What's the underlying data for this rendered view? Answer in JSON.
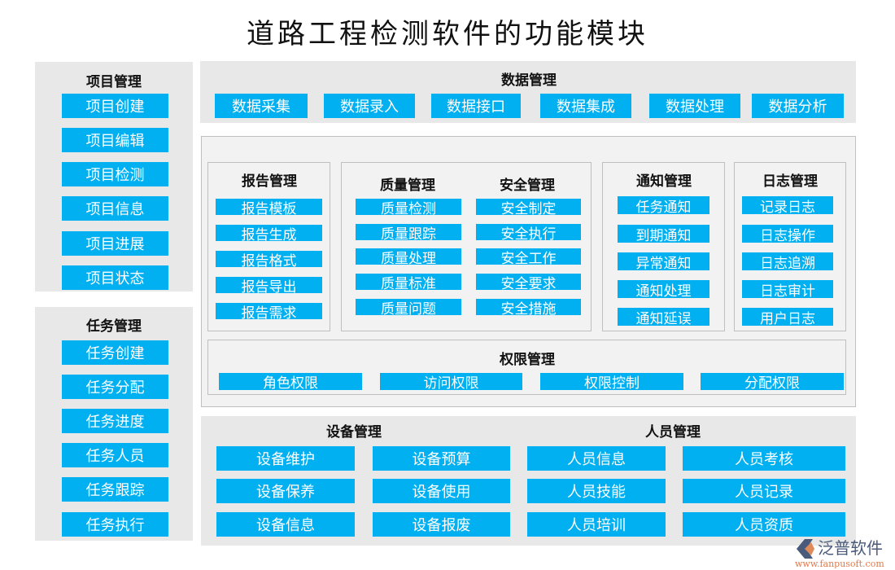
{
  "title": "道路工程检测软件的功能模块",
  "colors": {
    "button": "#00b0f0",
    "panel": "#e8e8e8",
    "inner": "#f2f2f2"
  },
  "project": {
    "title": "项目管理",
    "items": [
      "项目创建",
      "项目编辑",
      "项目检测",
      "项目信息",
      "项目进展",
      "项目状态"
    ]
  },
  "task": {
    "title": "任务管理",
    "items": [
      "任务创建",
      "任务分配",
      "任务进度",
      "任务人员",
      "任务跟踪",
      "任务执行"
    ]
  },
  "data_mgmt": {
    "title": "数据管理",
    "items": [
      "数据采集",
      "数据录入",
      "数据接口",
      "数据集成",
      "数据处理",
      "数据分析"
    ]
  },
  "report": {
    "title": "报告管理",
    "items": [
      "报告模板",
      "报告生成",
      "报告格式",
      "报告导出",
      "报告需求"
    ]
  },
  "quality": {
    "title": "质量管理",
    "items": [
      "质量检测",
      "质量跟踪",
      "质量处理",
      "质量标准",
      "质量问题"
    ]
  },
  "safety": {
    "title": "安全管理",
    "items": [
      "安全制定",
      "安全执行",
      "安全工作",
      "安全要求",
      "安全措施"
    ]
  },
  "notice": {
    "title": "通知管理",
    "items": [
      "任务通知",
      "到期通知",
      "异常通知",
      "通知处理",
      "通知延误"
    ]
  },
  "log": {
    "title": "日志管理",
    "items": [
      "记录日志",
      "日志操作",
      "日志追溯",
      "日志审计",
      "用户日志"
    ]
  },
  "permission": {
    "title": "权限管理",
    "items": [
      "角色权限",
      "访问权限",
      "权限控制",
      "分配权限"
    ]
  },
  "equipment": {
    "title": "设备管理",
    "items": [
      "设备维护",
      "设备预算",
      "设备保养",
      "设备使用",
      "设备信息",
      "设备报废"
    ]
  },
  "personnel": {
    "title": "人员管理",
    "items": [
      "人员信息",
      "人员考核",
      "人员技能",
      "人员记录",
      "人员培训",
      "人员资质"
    ]
  },
  "logo": {
    "brand": "泛普软件",
    "url": "www.fanpusoft.com"
  }
}
